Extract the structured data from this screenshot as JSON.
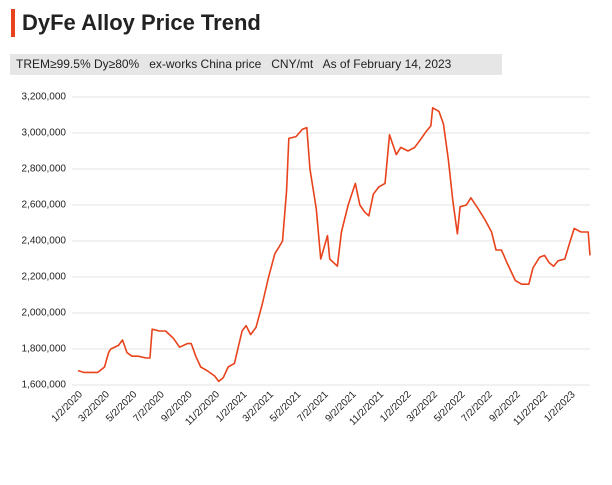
{
  "chart_data": {
    "type": "line",
    "title": "DyFe Alloy Price Trend",
    "subtitle": "TREM≥99.5% Dy≥80%   ex-works China price   CNY/mt   As of February 14, 2023",
    "x": [
      "1/2/2020",
      "1/15/2020",
      "2/15/2020",
      "3/1/2020",
      "3/10/2020",
      "3/15/2020",
      "4/1/2020",
      "4/10/2020",
      "4/20/2020",
      "5/1/2020",
      "5/15/2020",
      "6/1/2020",
      "6/10/2020",
      "6/15/2020",
      "7/1/2020",
      "7/15/2020",
      "8/1/2020",
      "8/15/2020",
      "9/1/2020",
      "9/10/2020",
      "9/20/2020",
      "10/1/2020",
      "10/15/2020",
      "11/1/2020",
      "11/10/2020",
      "11/20/2020",
      "12/1/2020",
      "12/15/2020",
      "1/1/2021",
      "1/10/2021",
      "1/20/2021",
      "2/1/2021",
      "2/15/2021",
      "3/1/2021",
      "3/15/2021",
      "3/25/2021",
      "4/1/2021",
      "4/10/2021",
      "4/15/2021",
      "5/1/2021",
      "5/15/2021",
      "5/25/2021",
      "6/1/2021",
      "6/15/2021",
      "6/25/2021",
      "7/10/2021",
      "7/15/2021",
      "8/1/2021",
      "8/10/2021",
      "8/25/2021",
      "9/10/2021",
      "9/20/2021",
      "10/1/2021",
      "10/10/2021",
      "10/20/2021",
      "11/1/2021",
      "11/15/2021",
      "11/25/2021",
      "12/10/2021",
      "12/20/2021",
      "1/5/2022",
      "1/20/2022",
      "2/1/2022",
      "2/15/2022",
      "2/25/2022",
      "3/1/2022",
      "3/15/2022",
      "3/25/2022",
      "4/5/2022",
      "4/15/2022",
      "4/25/2022",
      "5/1/2022",
      "5/15/2022",
      "5/25/2022",
      "6/10/2022",
      "6/25/2022",
      "7/10/2022",
      "7/20/2022",
      "8/1/2022",
      "8/15/2022",
      "9/1/2022",
      "9/15/2022",
      "10/1/2022",
      "10/10/2022",
      "10/25/2022",
      "11/5/2022",
      "11/15/2022",
      "11/25/2022",
      "12/5/2022",
      "12/20/2022",
      "1/1/2023",
      "1/10/2023",
      "1/25/2023",
      "2/10/2023",
      "2/14/2023"
    ],
    "series": [
      {
        "color": "#e8431c",
        "values": [
          1680000,
          1670000,
          1670000,
          1700000,
          1780000,
          1800000,
          1820000,
          1850000,
          1780000,
          1760000,
          1760000,
          1750000,
          1750000,
          1910000,
          1900000,
          1900000,
          1860000,
          1810000,
          1830000,
          1830000,
          1760000,
          1700000,
          1680000,
          1650000,
          1620000,
          1640000,
          1700000,
          1720000,
          1900000,
          1930000,
          1880000,
          1920000,
          2050000,
          2200000,
          2330000,
          2370000,
          2400000,
          2680000,
          2970000,
          2980000,
          3020000,
          3030000,
          2800000,
          2580000,
          2300000,
          2430000,
          2300000,
          2260000,
          2450000,
          2600000,
          2720000,
          2600000,
          2560000,
          2540000,
          2660000,
          2700000,
          2720000,
          2990000,
          2880000,
          2920000,
          2900000,
          2920000,
          2960000,
          3010000,
          3040000,
          3140000,
          3120000,
          3050000,
          2850000,
          2620000,
          2440000,
          2590000,
          2600000,
          2640000,
          2580000,
          2520000,
          2450000,
          2350000,
          2350000,
          2270000,
          2180000,
          2160000,
          2160000,
          2250000,
          2310000,
          2320000,
          2280000,
          2260000,
          2290000,
          2300000,
          2400000,
          2470000,
          2450000,
          2450000,
          2320000
        ]
      }
    ],
    "xlim": [
      "1/2/2020",
      "2/14/2023"
    ],
    "xticks": [
      "1/2/2020",
      "3/2/2020",
      "5/2/2020",
      "7/2/2020",
      "9/2/2020",
      "11/2/2020",
      "1/2/2021",
      "3/2/2021",
      "5/2/2021",
      "7/2/2021",
      "9/2/2021",
      "11/2/2021",
      "1/2/2022",
      "3/2/2022",
      "5/2/2022",
      "7/2/2022",
      "9/2/2022",
      "11/2/2022",
      "1/2/2023"
    ],
    "ylim": [
      1600000,
      3200000
    ],
    "yticks": [
      {
        "value": 1600000,
        "label": "1,600,000"
      },
      {
        "value": 1800000,
        "label": "1,800,000"
      },
      {
        "value": 2000000,
        "label": "2,000,000"
      },
      {
        "value": 2200000,
        "label": "2,200,000"
      },
      {
        "value": 2400000,
        "label": "2,400,000"
      },
      {
        "value": 2600000,
        "label": "2,600,000"
      },
      {
        "value": 2800000,
        "label": "2,800,000"
      },
      {
        "value": 3000000,
        "label": "3,000,000"
      },
      {
        "value": 3200000,
        "label": "3,200,000"
      }
    ],
    "grid": true
  }
}
